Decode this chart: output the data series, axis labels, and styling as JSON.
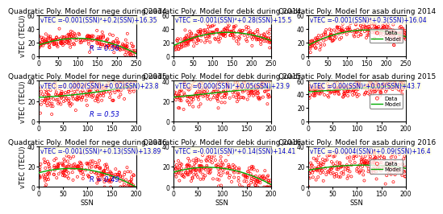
{
  "subplots": [
    {
      "title": "Quadratic Poly. Model for nege during 2014",
      "equation": "vTEC =-0.001(SSN)²+0.2(SSN)+16.35",
      "r_value": "R = 0.56",
      "coeffs": [
        -0.001,
        0.2,
        16.35
      ],
      "xlim": [
        0,
        250
      ],
      "ylim": [
        0,
        60
      ]
    },
    {
      "title": "Quadratic Poly. Model for debk during 2014",
      "equation": "vTEC =-0.001(SSN)²+0.28(SSN)+15.5",
      "r_value": null,
      "coeffs": [
        -0.001,
        0.28,
        15.5
      ],
      "xlim": [
        0,
        250
      ],
      "ylim": [
        0,
        60
      ]
    },
    {
      "title": "Quadratic Poly. Model for asab during 2014",
      "equation": "vTEC =-0.001(SSN)²+0.3(SSN)+16.04",
      "r_value": null,
      "coeffs": [
        -0.001,
        0.3,
        16.04
      ],
      "xlim": [
        0,
        250
      ],
      "ylim": [
        0,
        60
      ]
    },
    {
      "title": "Quadratic Poly. Model for nege during 2015",
      "equation": "vTEC =0.0002(SSN)²+0.02(SSN)+23.8",
      "r_value": "R = 0.53",
      "coeffs": [
        0.0002,
        0.02,
        23.8
      ],
      "xlim": [
        0,
        200
      ],
      "ylim": [
        0,
        40
      ]
    },
    {
      "title": "Quadratic Poly. Model for debk during 2015",
      "equation": "vTEC =0.000(SSN)²+0.05(SSN)+23.9",
      "r_value": null,
      "coeffs": [
        0.0,
        0.05,
        23.9
      ],
      "xlim": [
        0,
        200
      ],
      "ylim": [
        0,
        40
      ]
    },
    {
      "title": "Quadratic Poly. Model for asab during 2015",
      "equation": "vTEC =0.00(SSN)²+0.05(SSN)+43.7",
      "r_value": null,
      "coeffs": [
        0.0,
        0.05,
        43.7
      ],
      "xlim": [
        0,
        200
      ],
      "ylim": [
        0,
        60
      ]
    },
    {
      "title": "Quadratic Poly. Model for nege during 2016",
      "equation": "vTEC =-0.001(SSN)²+0.13(SSN)+13.89",
      "r_value": "R = 0.49",
      "coeffs": [
        -0.001,
        0.13,
        13.89
      ],
      "xlim": [
        0,
        200
      ],
      "ylim": [
        0,
        40
      ]
    },
    {
      "title": "Quadratic Poly. Model for debk during 2016",
      "equation": "vTEC =-0.001(SSN)²+0.14(SSN)+14.41",
      "r_value": null,
      "coeffs": [
        -0.001,
        0.14,
        14.41
      ],
      "xlim": [
        0,
        200
      ],
      "ylim": [
        0,
        40
      ]
    },
    {
      "title": "Quadratic Poly. Model for asab during 2016",
      "equation": "vTEC =-0.0004(SSN)²+0.09(SSN)+16.4",
      "r_value": null,
      "coeffs": [
        -0.0004,
        0.09,
        16.4
      ],
      "xlim": [
        0,
        200
      ],
      "ylim": [
        0,
        40
      ]
    }
  ],
  "scatter_color": "#FF0000",
  "line_color": "#00AA00",
  "equation_color": "#0000CC",
  "r_color": "#0000CC",
  "xlabel": "SSN",
  "ylabel": "vTEC (TECU)",
  "title_fontsize": 6.5,
  "label_fontsize": 6,
  "tick_fontsize": 5.5,
  "eq_fontsize": 5.5,
  "legend_fontsize": 5
}
